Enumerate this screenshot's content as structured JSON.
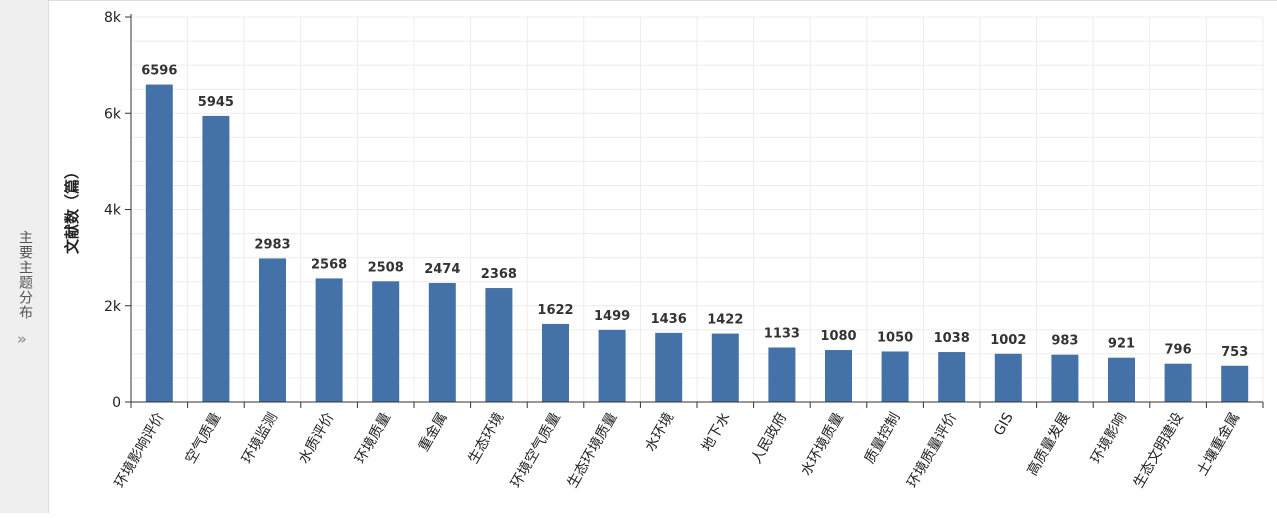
{
  "side_panel": {
    "label": "主要主题分布",
    "expand_icon": "double-chevron-right-icon"
  },
  "chart_data": {
    "type": "bar",
    "title": "",
    "xlabel": "",
    "ylabel": "文献数（篇）",
    "ylim": [
      0,
      8000
    ],
    "yticks": [
      0,
      2000,
      4000,
      6000,
      8000
    ],
    "ytick_labels": [
      "0",
      "2k",
      "4k",
      "6k",
      "8k"
    ],
    "grid": true,
    "bar_color": "#4472a8",
    "categories": [
      "环境影响评价",
      "空气质量",
      "环境监测",
      "水质评价",
      "环境质量",
      "重金属",
      "生态环境",
      "环境空气质量",
      "生态环境质量",
      "水环境",
      "地下水",
      "人民政府",
      "水环境质量",
      "质量控制",
      "环境质量评价",
      "GIS",
      "高质量发展",
      "环境影响",
      "生态文明建设",
      "土壤重金属"
    ],
    "values": [
      6596,
      5945,
      2983,
      2568,
      2508,
      2474,
      2368,
      1622,
      1499,
      1436,
      1422,
      1133,
      1080,
      1050,
      1038,
      1002,
      983,
      921,
      796,
      753
    ]
  }
}
